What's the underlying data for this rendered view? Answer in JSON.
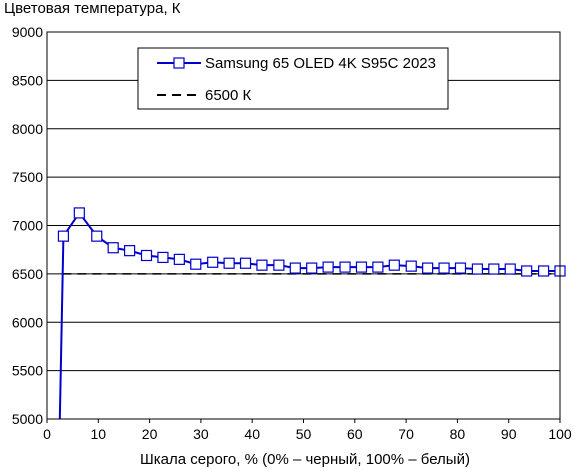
{
  "chart_data": {
    "type": "line",
    "ylabel": "Цветовая температура, К",
    "xlabel": "Шкала серого, % (0% – черный, 100% – белый)",
    "xlim": [
      0,
      100
    ],
    "ylim": [
      5000,
      9000
    ],
    "x_ticks": [
      0,
      10,
      20,
      30,
      40,
      50,
      60,
      70,
      80,
      90,
      100
    ],
    "y_ticks": [
      5000,
      5500,
      6000,
      6500,
      7000,
      7500,
      8000,
      8500,
      9000
    ],
    "grid": "horizontal",
    "legend_position": "top-center",
    "series": [
      {
        "name": "Samsung 65 OLED 4K S95C 2023",
        "color": "#0000cc",
        "style": "solid",
        "marker": "square",
        "x": [
          2.5,
          3.2,
          6.3,
          9.7,
          12.9,
          16.1,
          19.4,
          22.6,
          25.8,
          29.0,
          32.3,
          35.5,
          38.7,
          41.9,
          45.2,
          48.4,
          51.6,
          54.8,
          58.1,
          61.3,
          64.5,
          67.7,
          71.0,
          74.2,
          77.4,
          80.6,
          83.9,
          87.1,
          90.3,
          93.5,
          96.8,
          100
        ],
        "values": [
          5000,
          6890,
          7130,
          6890,
          6770,
          6740,
          6690,
          6670,
          6650,
          6600,
          6620,
          6610,
          6610,
          6590,
          6590,
          6560,
          6560,
          6570,
          6570,
          6570,
          6570,
          6590,
          6580,
          6560,
          6560,
          6560,
          6550,
          6550,
          6550,
          6530,
          6530,
          6530
        ],
        "marked_from_index": 1
      },
      {
        "name": "6500 К",
        "color": "#000000",
        "style": "dashed",
        "marker": "none",
        "x": [
          3,
          100
        ],
        "values": [
          6500,
          6500
        ]
      }
    ]
  }
}
